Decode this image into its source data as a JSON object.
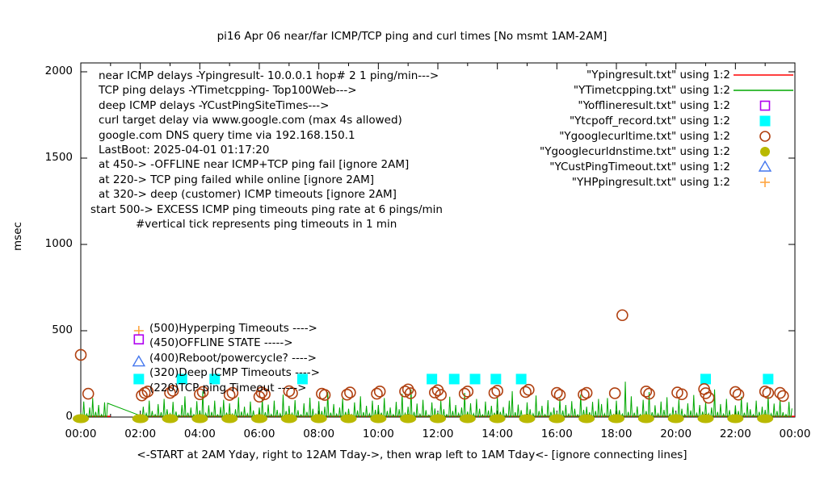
{
  "title": "pi16 Apr 06  near/far ICMP/TCP ping and curl times [No msmt 1AM-2AM]",
  "axes": {
    "ylabel": "msec",
    "xtitle": "<-START at 2AM Yday, right to 12AM Tday->, then wrap left to 1AM Tday<- [ignore connecting lines]",
    "yticks": [
      0,
      500,
      1000,
      1500,
      2000
    ],
    "xtick_labels": [
      "00:00",
      "02:00",
      "04:00",
      "06:00",
      "08:00",
      "10:00",
      "12:00",
      "14:00",
      "16:00",
      "18:00",
      "20:00",
      "22:00",
      "00:00"
    ],
    "xtick_hours": [
      0,
      2,
      4,
      6,
      8,
      10,
      12,
      14,
      16,
      18,
      20,
      22,
      24
    ]
  },
  "info_annotations": [
    "near ICMP delays -Ypingresult- 10.0.0.1 hop# 2 1 ping/min--->",
    "TCP ping delays -YTimetcpping- Top100Web--->",
    "deep ICMP delays -YCustPingSiteTimes--->",
    "curl target delay via www.google.com (max 4s allowed)",
    "google.com DNS query time via 192.168.150.1",
    "LastBoot: 2025-04-01 01:17:20",
    "at 450-> -OFFLINE near ICMP+TCP ping fail [ignore 2AM]",
    "at 220-> TCP ping failed while online [ignore 2AM]",
    "at 320-> deep (customer) ICMP timeouts [ignore 2AM]",
    "start 500-> EXCESS ICMP ping timeouts ping rate at 6 pings/min",
    "#vertical tick represents ping timeouts in 1 min"
  ],
  "state_annotations": [
    "(500)Hyperping Timeouts ---->",
    "(450)OFFLINE STATE ----->",
    "(400)Reboot/powercycle? ---->",
    "(320)Deep ICMP Timeouts ---->",
    "(220)TCP ping Timeout ----->"
  ],
  "legend": {
    "entries": [
      {
        "label": "\"Ypingresult.txt\" using 1:2",
        "marker": "line",
        "color": "#ff0000"
      },
      {
        "label": "\"YTimetcpping.txt\" using 1:2",
        "marker": "line",
        "color": "#00a800"
      },
      {
        "label": "\"Yofflineresult.txt\" using 1:2",
        "marker": "open-square",
        "color": "#b000f0"
      },
      {
        "label": "\"Ytcpoff_record.txt\" using 1:2",
        "marker": "filled-square",
        "color": "#00ffff"
      },
      {
        "label": "\"Ygooglecurltime.txt\" using 1:2",
        "marker": "open-circle",
        "color": "#b04010"
      },
      {
        "label": "\"Ygooglecurldnstime.txt\" using 1:2",
        "marker": "filled-circle",
        "color": "#b9b900"
      },
      {
        "label": "\"YCustPingTimeout.txt\" using 1:2",
        "marker": "open-triangle",
        "color": "#4477ee"
      },
      {
        "label": "\"YHPpingresult.txt\" using 1:2",
        "marker": "plus",
        "color": "#ffa540"
      }
    ]
  },
  "chart_data": {
    "type": "line",
    "x_unit": "hours",
    "xlim": [
      0,
      24
    ],
    "ylim": [
      0,
      2050
    ],
    "grid": false,
    "legend_position": "top-right",
    "note": "no measurements between 01:00 and 02:00",
    "series": [
      {
        "name": "Ypingresult near ICMP ping",
        "style": "line",
        "color": "#ff0000",
        "segments": [
          {
            "from": 0,
            "to": 1,
            "value": 4
          },
          {
            "from": 2,
            "to": 24,
            "value": 4
          }
        ]
      },
      {
        "name": "YTimetcpping TCP ping delays",
        "style": "spikes",
        "color": "#00a800",
        "start_hour": 0,
        "dt_hours": 0.1,
        "baseline": 3,
        "heights": [
          25,
          90,
          18,
          55,
          110,
          30,
          70,
          15,
          85,
          80,
          null,
          null,
          null,
          null,
          null,
          null,
          null,
          null,
          null,
          null,
          8,
          60,
          22,
          95,
          35,
          15,
          75,
          28,
          105,
          45,
          20,
          88,
          32,
          12,
          70,
          120,
          25,
          55,
          15,
          92,
          38,
          150,
          22,
          68,
          30,
          95,
          14,
          58,
          100,
          26,
          80,
          18,
          45,
          115,
          32,
          60,
          20,
          90,
          38,
          12,
          55,
          105,
          28,
          72,
          16,
          95,
          42,
          20,
          130,
          35,
          65,
          22,
          98,
          40,
          14,
          80,
          30,
          112,
          48,
          18,
          92,
          35,
          60,
          145,
          25,
          75,
          18,
          55,
          108,
          30,
          48,
          15,
          85,
          38,
          120,
          28,
          65,
          20,
          95,
          42,
          70,
          25,
          110,
          35,
          55,
          15,
          88,
          45,
          135,
          22,
          60,
          160,
          30,
          78,
          18,
          100,
          40,
          12,
          85,
          50,
          28,
          95,
          45,
          15,
          118,
          35,
          70,
          22,
          55,
          140,
          32,
          80,
          20,
          105,
          48,
          14,
          90,
          38,
          65,
          25,
          115,
          30,
          58,
          18,
          95,
          150,
          28,
          72,
          40,
          12,
          85,
          45,
          20,
          125,
          35,
          65,
          15,
          98,
          30,
          55,
          22,
          108,
          38,
          70,
          18,
          92,
          48,
          14,
          130,
          42,
          60,
          28,
          88,
          35,
          105,
          75,
          20,
          110,
          45,
          15,
          95,
          40,
          18,
          205,
          30,
          120,
          25,
          62,
          15,
          100,
          35,
          145,
          28,
          68,
          20,
          90,
          42,
          115,
          18,
          58,
          25,
          102,
          48,
          15,
          80,
          38,
          128,
          22,
          70,
          32,
          90,
          20,
          55,
          160,
          30,
          75,
          18,
          105,
          40,
          14,
          68,
          35,
          118,
          25,
          85,
          45,
          15,
          95,
          30,
          60,
          42,
          125,
          20,
          78,
          35,
          100,
          28,
          15,
          88,
          50
        ]
      },
      {
        "name": "Ytcpoff_record TCP fail while online",
        "style": "filled-square",
        "color": "#00ffff",
        "size": 13,
        "points": [
          [
            3.4,
            220
          ],
          [
            4.5,
            220
          ],
          [
            7.45,
            220
          ],
          [
            11.8,
            220
          ],
          [
            12.55,
            220
          ],
          [
            13.25,
            220
          ],
          [
            13.95,
            220
          ],
          [
            14.8,
            220
          ],
          [
            21.0,
            220
          ],
          [
            23.1,
            220
          ]
        ]
      },
      {
        "name": "Ygooglecurltime curl delay",
        "style": "open-circle",
        "color": "#b04010",
        "radius": 6.5,
        "points": [
          [
            0.0,
            360
          ],
          [
            0.25,
            135
          ],
          [
            2.05,
            125
          ],
          [
            2.15,
            140
          ],
          [
            2.25,
            148
          ],
          [
            3.0,
            140
          ],
          [
            3.1,
            152
          ],
          [
            4.0,
            132
          ],
          [
            4.1,
            145
          ],
          [
            5.0,
            128
          ],
          [
            5.1,
            140
          ],
          [
            6.0,
            118
          ],
          [
            6.08,
            142
          ],
          [
            6.18,
            132
          ],
          [
            7.0,
            150
          ],
          [
            7.1,
            138
          ],
          [
            8.1,
            135
          ],
          [
            8.2,
            128
          ],
          [
            8.95,
            130
          ],
          [
            9.05,
            142
          ],
          [
            9.95,
            135
          ],
          [
            10.05,
            148
          ],
          [
            10.9,
            148
          ],
          [
            11.0,
            160
          ],
          [
            11.08,
            138
          ],
          [
            11.9,
            142
          ],
          [
            12.0,
            155
          ],
          [
            12.1,
            128
          ],
          [
            12.9,
            135
          ],
          [
            13.0,
            148
          ],
          [
            13.9,
            140
          ],
          [
            14.0,
            152
          ],
          [
            14.95,
            145
          ],
          [
            15.05,
            158
          ],
          [
            16.0,
            140
          ],
          [
            16.1,
            128
          ],
          [
            16.9,
            130
          ],
          [
            17.0,
            140
          ],
          [
            17.95,
            138
          ],
          [
            18.2,
            590
          ],
          [
            19.0,
            148
          ],
          [
            19.1,
            135
          ],
          [
            20.05,
            142
          ],
          [
            20.2,
            132
          ],
          [
            20.95,
            162
          ],
          [
            21.0,
            138
          ],
          [
            21.1,
            112
          ],
          [
            22.0,
            145
          ],
          [
            22.1,
            130
          ],
          [
            23.0,
            148
          ],
          [
            23.1,
            140
          ],
          [
            23.5,
            140
          ],
          [
            23.6,
            122
          ]
        ]
      },
      {
        "name": "Ygooglecurldnstime DNS query time",
        "style": "filled-ellipse",
        "color": "#b9b900",
        "hours": [
          0,
          2,
          3,
          4,
          5,
          6,
          7,
          8,
          9,
          10,
          11,
          12,
          13,
          14,
          15,
          16,
          17,
          18,
          19,
          20,
          21,
          22,
          23
        ],
        "value": 0
      }
    ],
    "annotation_markers": [
      {
        "shape": "plus",
        "color": "#ffa540",
        "x": 1.95,
        "y": 500
      },
      {
        "shape": "open-square",
        "color": "#b000f0",
        "x": 1.95,
        "y": 450
      },
      {
        "shape": "open-triangle",
        "color": "#4477ee",
        "x": 1.95,
        "y": 320
      },
      {
        "shape": "filled-square",
        "color": "#00ffff",
        "x": 1.95,
        "y": 220
      }
    ]
  }
}
